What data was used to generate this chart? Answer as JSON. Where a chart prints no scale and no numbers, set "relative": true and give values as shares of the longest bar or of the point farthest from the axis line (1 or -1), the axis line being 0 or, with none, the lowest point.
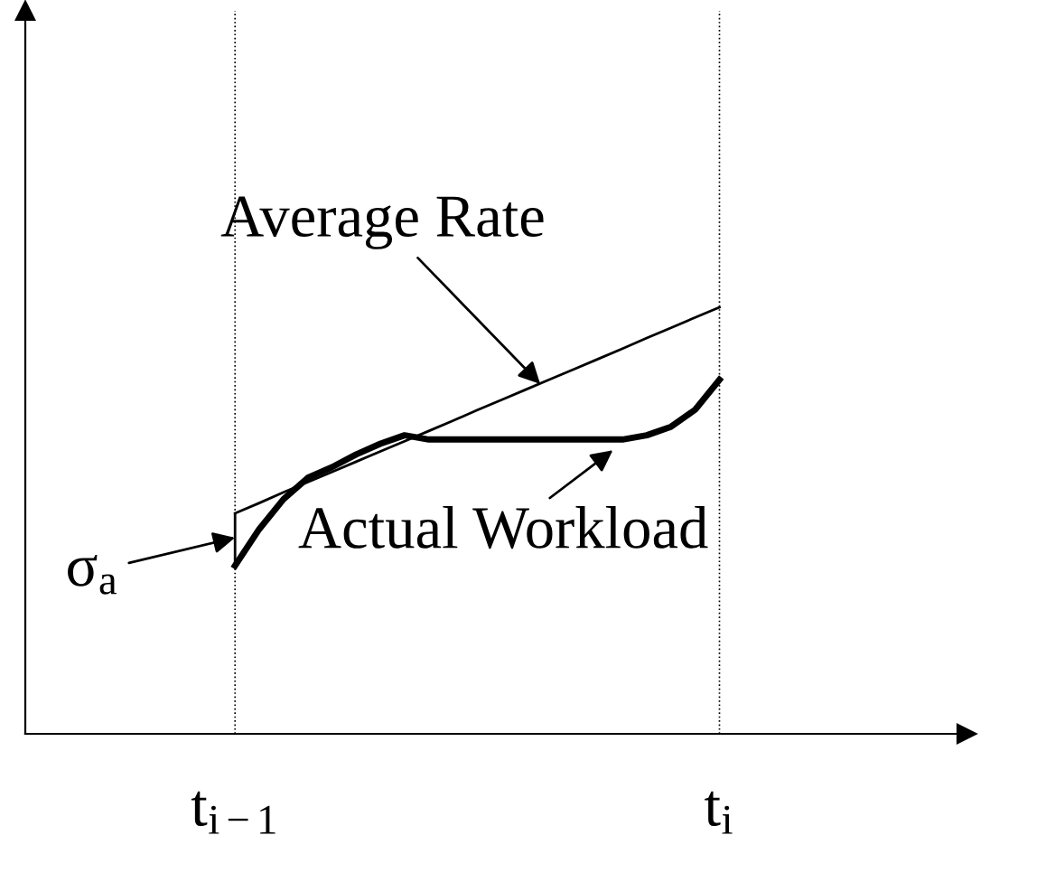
{
  "chart_data": {
    "type": "line",
    "relative": true,
    "tick_labels": "x",
    "grid": "x",
    "legend": false,
    "marker": "none",
    "line_style": "solid",
    "categories": [
      "t$_{i−1}$",
      null,
      null,
      null,
      null,
      null,
      null,
      null,
      null,
      null,
      null,
      null,
      null,
      null,
      null,
      null,
      null,
      null,
      null,
      null,
      "t$_{i}$"
    ],
    "series": [
      {
        "color": "#000000",
        "values": [
          0.517,
          0.541,
          0.566,
          0.59,
          0.614,
          0.638,
          0.662,
          0.686,
          0.71,
          0.734,
          0.759,
          0.783,
          0.807,
          0.831,
          0.855,
          0.879,
          0.903,
          0.928,
          0.952,
          0.976,
          1.0
        ]
      },
      {
        "color": "#000000",
        "values": [
          0.394,
          0.48,
          0.55,
          0.6,
          0.625,
          0.655,
          0.68,
          0.7,
          0.69,
          0.69,
          0.69,
          0.69,
          0.69,
          0.69,
          0.69,
          0.69,
          0.69,
          0.7,
          0.72,
          0.76,
          0.83
        ]
      }
    ],
    "annotations": [
      "Average Rate",
      "Actual Workload",
      "σ$_{a}$"
    ]
  }
}
